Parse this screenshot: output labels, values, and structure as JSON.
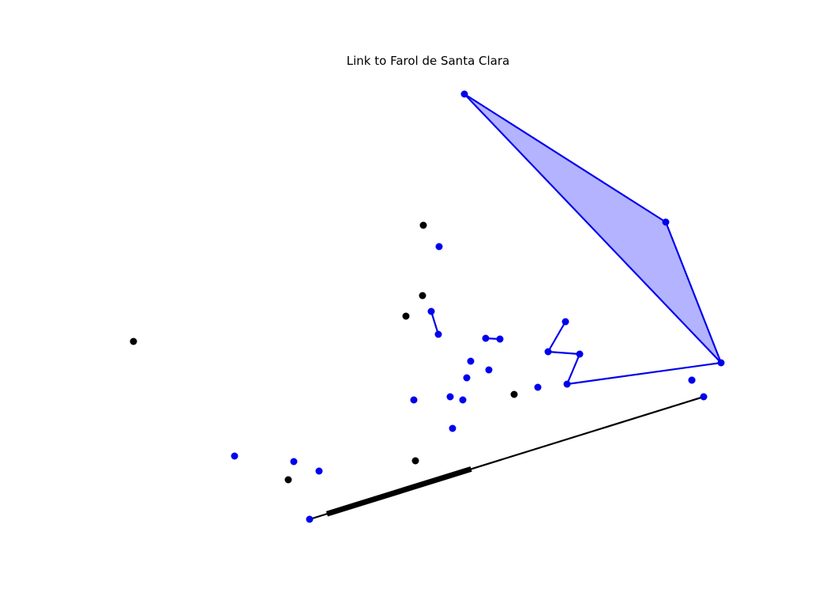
{
  "title": "Link to Farol de Santa Clara",
  "colors": {
    "blue": "#0000ee",
    "black": "#000000",
    "fill": "#b3b3ff"
  },
  "nodes": [
    {
      "id": "b1",
      "color": "blue"
    },
    {
      "id": "b2",
      "color": "blue"
    },
    {
      "id": "b3",
      "color": "blue"
    },
    {
      "id": "b4",
      "color": "blue"
    },
    {
      "id": "b5",
      "color": "blue"
    },
    {
      "id": "b6",
      "color": "blue"
    },
    {
      "id": "b7",
      "color": "blue"
    },
    {
      "id": "b8",
      "color": "blue"
    },
    {
      "id": "b9",
      "color": "blue"
    },
    {
      "id": "b10",
      "color": "blue"
    },
    {
      "id": "b11",
      "color": "blue"
    },
    {
      "id": "b12",
      "color": "blue"
    },
    {
      "id": "b13",
      "color": "blue"
    },
    {
      "id": "b14",
      "color": "blue"
    },
    {
      "id": "b15",
      "color": "blue"
    },
    {
      "id": "b16",
      "color": "blue"
    },
    {
      "id": "b17",
      "color": "blue"
    },
    {
      "id": "b18",
      "color": "blue"
    },
    {
      "id": "b19",
      "color": "blue"
    },
    {
      "id": "b20",
      "color": "blue"
    },
    {
      "id": "b21",
      "color": "blue"
    },
    {
      "id": "b22",
      "color": "blue"
    },
    {
      "id": "b23",
      "color": "blue"
    },
    {
      "id": "b24",
      "color": "blue"
    },
    {
      "id": "b25",
      "color": "blue"
    },
    {
      "id": "b26",
      "color": "blue"
    },
    {
      "id": "b27",
      "color": "blue"
    },
    {
      "id": "k1",
      "color": "black"
    },
    {
      "id": "k2",
      "color": "black"
    },
    {
      "id": "k3",
      "color": "black"
    },
    {
      "id": "k4",
      "color": "black"
    },
    {
      "id": "k5",
      "color": "black"
    },
    {
      "id": "k6",
      "color": "black"
    },
    {
      "id": "k7",
      "color": "black"
    }
  ],
  "edges": [
    {
      "from": "b1",
      "to": "b2",
      "color": "blue"
    },
    {
      "from": "b2",
      "to": "b3",
      "color": "blue"
    },
    {
      "from": "b3",
      "to": "b1",
      "color": "blue"
    },
    {
      "from": "b3",
      "to": "b4",
      "color": "blue"
    },
    {
      "from": "b4",
      "to": "b5",
      "color": "blue"
    },
    {
      "from": "b5",
      "to": "b6",
      "color": "blue"
    },
    {
      "from": "b6",
      "to": "b7",
      "color": "blue"
    },
    {
      "from": "b8",
      "to": "b9",
      "color": "blue"
    },
    {
      "from": "b10",
      "to": "b11",
      "color": "blue"
    },
    {
      "from": "b26",
      "to": "b27",
      "color": "black"
    }
  ],
  "filled_regions": [
    {
      "nodes": [
        "b1",
        "b2",
        "b3"
      ]
    }
  ],
  "highlighted_segment": {
    "edge": [
      "b26",
      "b27"
    ]
  }
}
